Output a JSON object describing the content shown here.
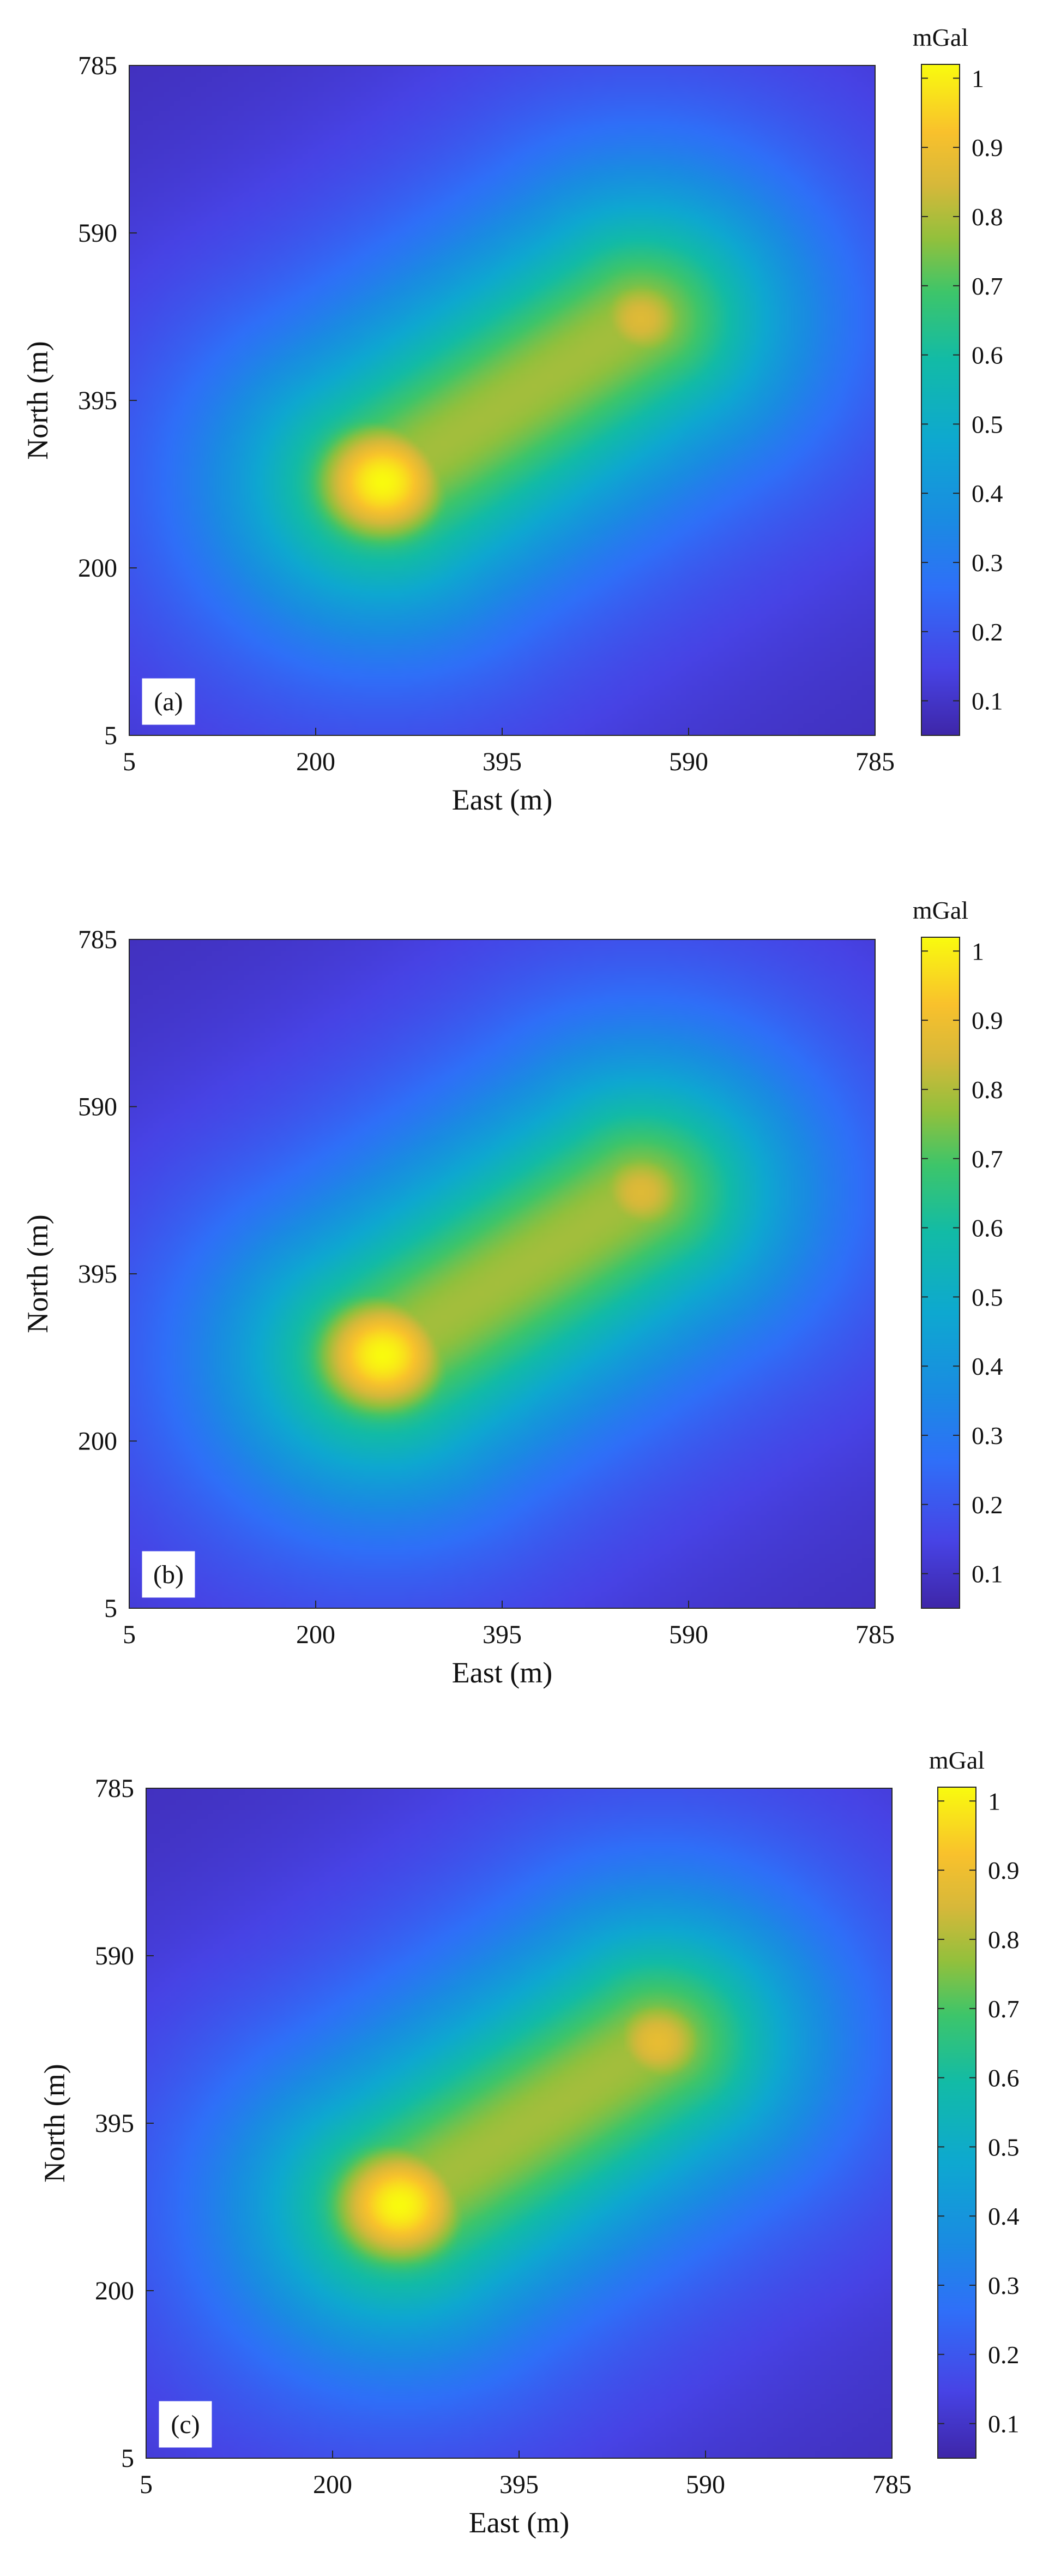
{
  "panels": [
    {
      "label": "(a)",
      "chart_data": {
        "type": "heatmap",
        "xlabel": "East (m)",
        "ylabel": "North (m)",
        "xlim": [
          5,
          785
        ],
        "ylim": [
          5,
          785
        ],
        "xticks": [
          "5",
          "200",
          "395",
          "590",
          "785"
        ],
        "yticks": [
          "5",
          "200",
          "395",
          "590",
          "785"
        ],
        "colorbar_unit": "mGal",
        "colorbar_range": [
          0.05,
          1.02
        ],
        "colorbar_ticks": [
          "0.1",
          "0.2",
          "0.3",
          "0.4",
          "0.5",
          "0.6",
          "0.7",
          "0.8",
          "0.9",
          "1"
        ],
        "colormap": "parula",
        "anomaly_peaks": [
          {
            "east": 270,
            "north": 300,
            "value": 1.0
          },
          {
            "east": 540,
            "north": 490,
            "value": 0.84
          }
        ]
      }
    },
    {
      "label": "(b)",
      "chart_data": {
        "type": "heatmap",
        "xlabel": "East (m)",
        "ylabel": "North (m)",
        "xlim": [
          5,
          785
        ],
        "ylim": [
          5,
          785
        ],
        "xticks": [
          "5",
          "200",
          "395",
          "590",
          "785"
        ],
        "yticks": [
          "5",
          "200",
          "395",
          "590",
          "785"
        ],
        "colorbar_unit": "mGal",
        "colorbar_range": [
          0.05,
          1.02
        ],
        "colorbar_ticks": [
          "0.1",
          "0.2",
          "0.3",
          "0.4",
          "0.5",
          "0.6",
          "0.7",
          "0.8",
          "0.9",
          "1"
        ],
        "colormap": "parula",
        "anomaly_peaks": [
          {
            "east": 270,
            "north": 300,
            "value": 1.0
          },
          {
            "east": 540,
            "north": 490,
            "value": 0.84
          }
        ]
      }
    },
    {
      "label": "(c)",
      "chart_data": {
        "type": "heatmap",
        "xlabel": "East (m)",
        "ylabel": "North (m)",
        "xlim": [
          5,
          785
        ],
        "ylim": [
          5,
          785
        ],
        "xticks": [
          "5",
          "200",
          "395",
          "590",
          "785"
        ],
        "yticks": [
          "5",
          "200",
          "395",
          "590",
          "785"
        ],
        "colorbar_unit": "mGal",
        "colorbar_range": [
          0.05,
          1.02
        ],
        "colorbar_ticks": [
          "0.1",
          "0.2",
          "0.3",
          "0.4",
          "0.5",
          "0.6",
          "0.7",
          "0.8",
          "0.9",
          "1"
        ],
        "colormap": "parula",
        "anomaly_peaks": [
          {
            "east": 270,
            "north": 300,
            "value": 1.0
          },
          {
            "east": 540,
            "north": 490,
            "value": 0.86
          }
        ]
      }
    }
  ]
}
